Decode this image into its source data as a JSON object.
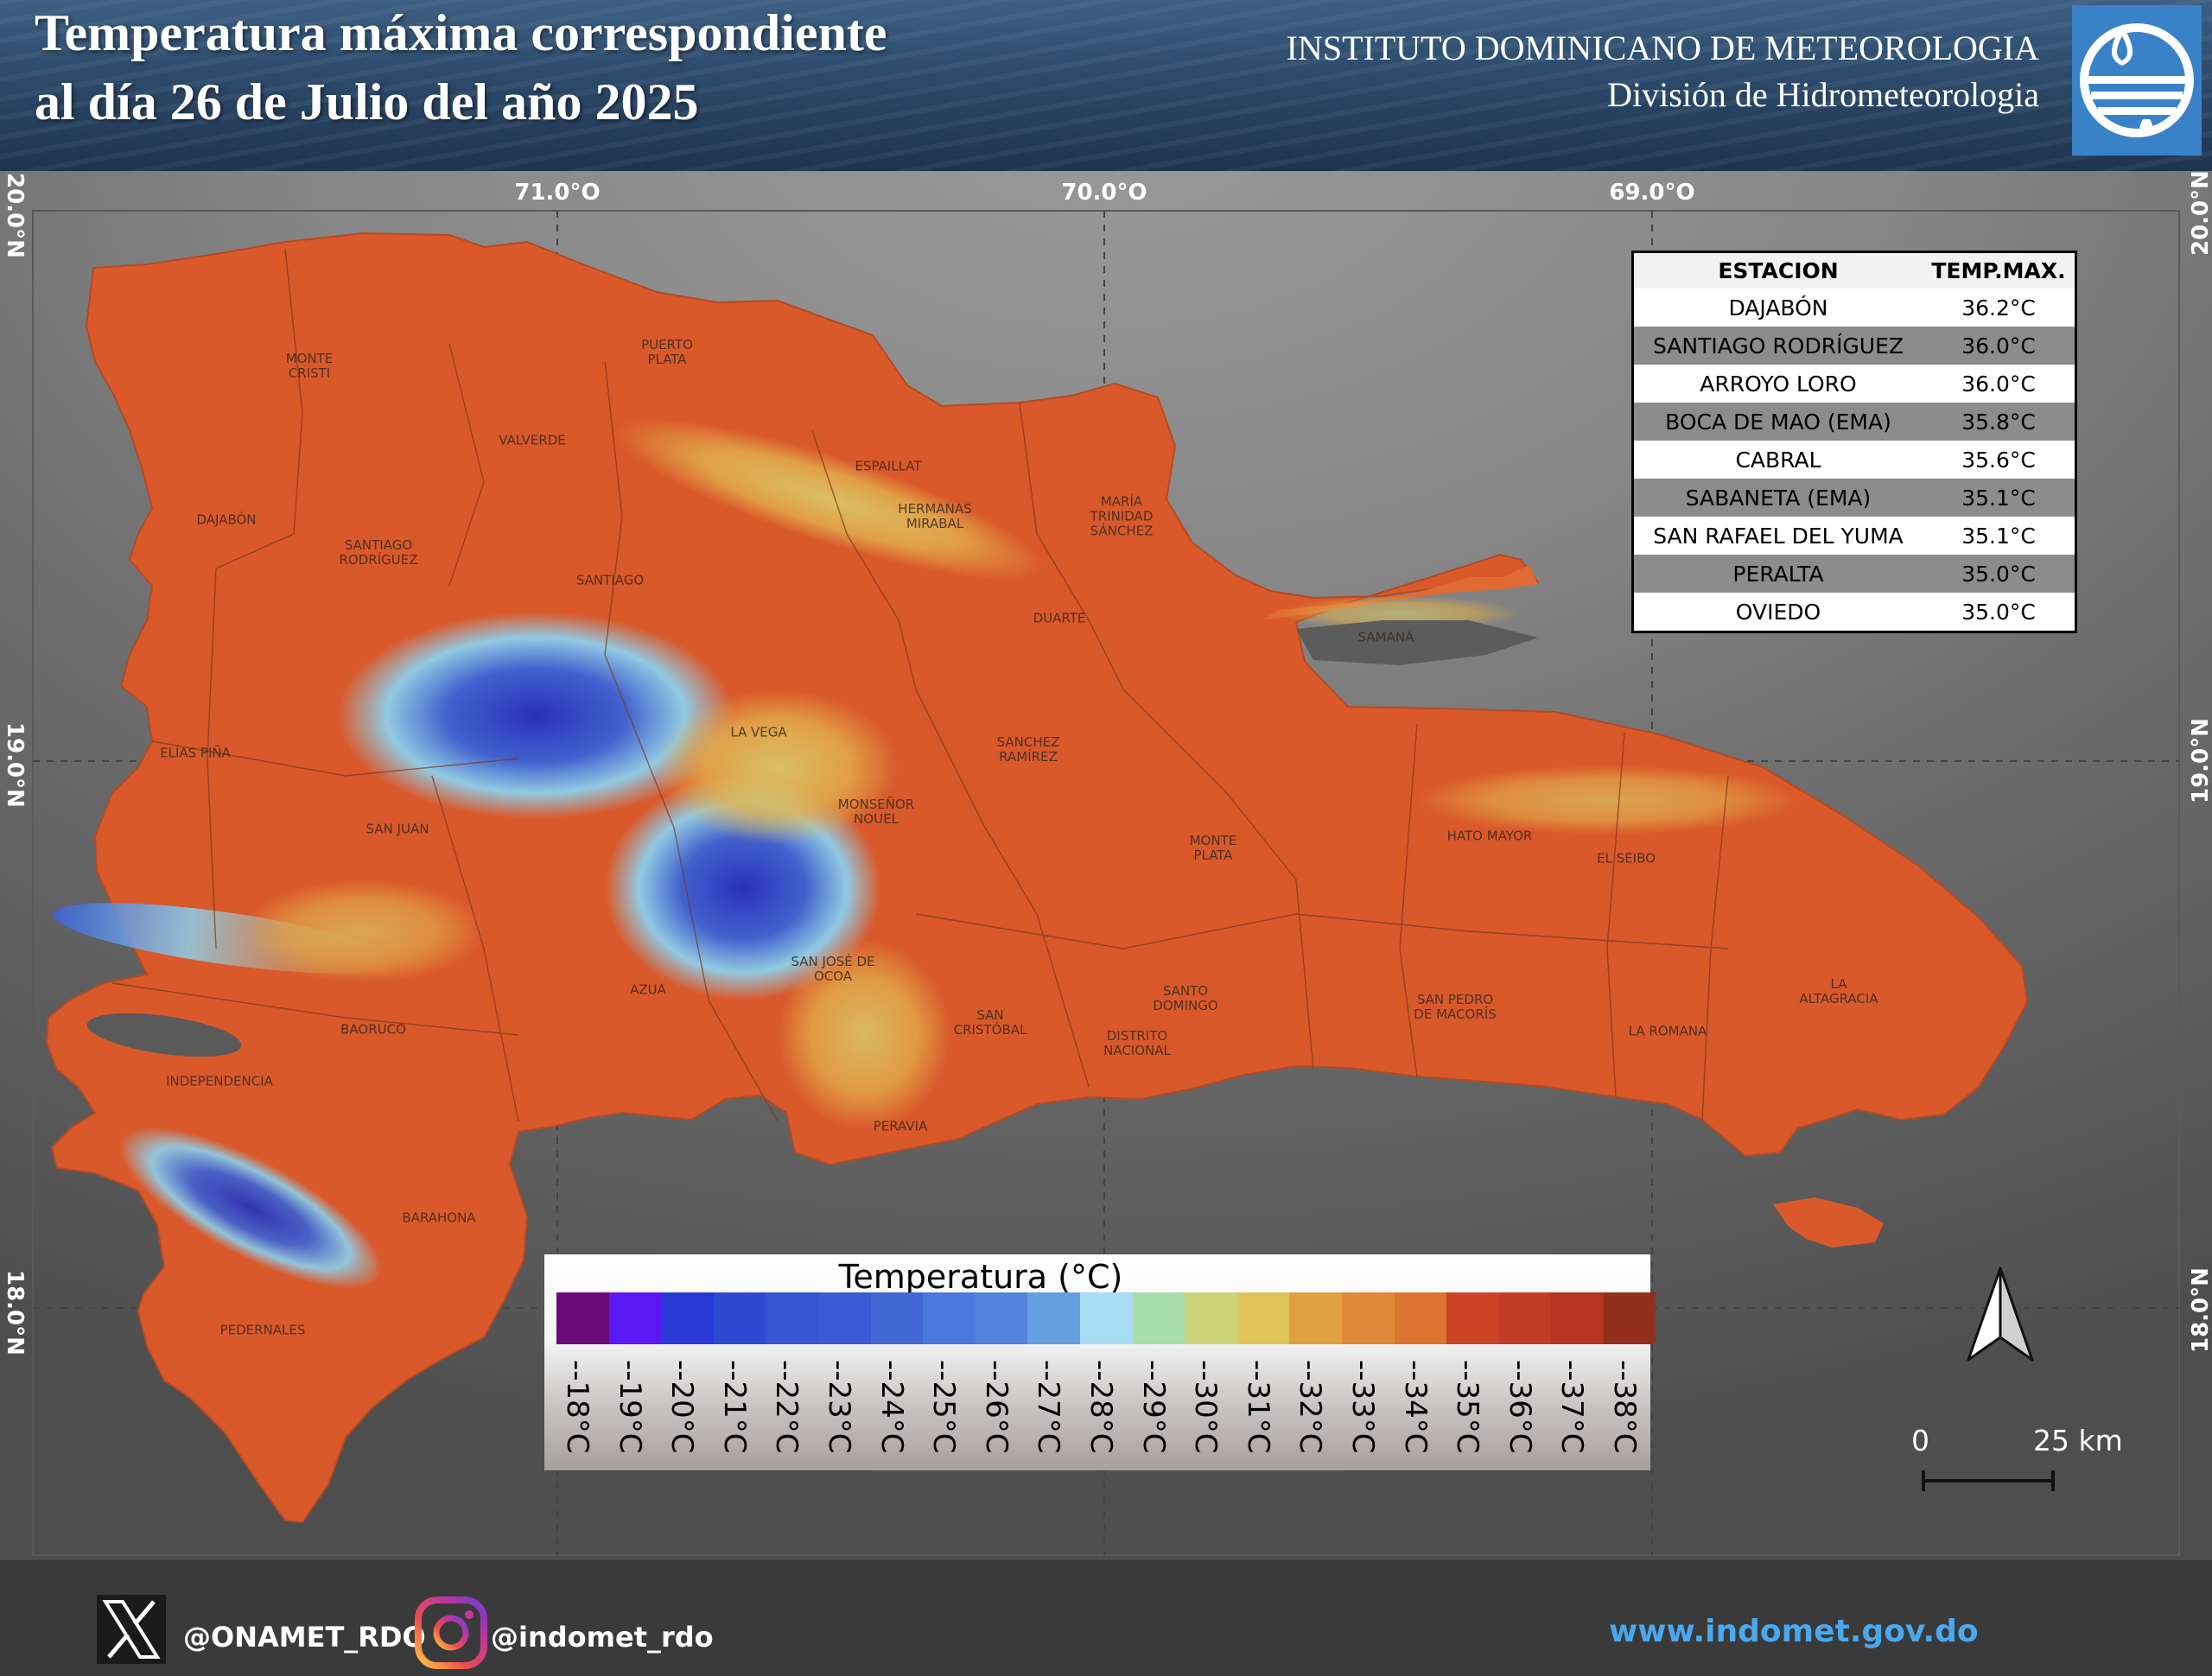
{
  "header": {
    "title_line1": "Temperatura máxima correspondiente",
    "title_line2": "al día 26 de Julio del año 2025",
    "institute": "INSTITUTO DOMINICANO DE METEOROLOGIA",
    "division": "División de Hidrometeorologia",
    "logo_icon": "indomet-logo-icon"
  },
  "map": {
    "lon_labels": [
      "71.0°O",
      "70.0°O",
      "69.0°O"
    ],
    "lat_labels": [
      "20.0°N",
      "19.0°N",
      "18.0°N"
    ],
    "provinces": [
      "MONTE\nCRISTI",
      "PUERTO\nPLATA",
      "VALVERDE",
      "ESPAILLAT",
      "HERMANAS\nMIRABAL",
      "MARÍA\nTRINIDAD\nSÁNCHEZ",
      "DAJABÓN",
      "SANTIAGO\nRODRÍGUEZ",
      "SANTIAGO",
      "DUARTE",
      "SAMANÁ",
      "LA VEGA",
      "SANCHEZ\nRAMÍREZ",
      "ELÍAS PIÑA",
      "SAN JUAN",
      "MONSEÑOR\nNOUEL",
      "MONTE\nPLATA",
      "HATO MAYOR",
      "EL SEIBO",
      "SAN JOSÉ DE\nOCOA",
      "AZUA",
      "BAORUCO",
      "SAN\nCRISTÓBAL",
      "SANTO\nDOMINGO",
      "DISTRITO\nNACIONAL",
      "SAN PEDRO\nDE MACORÍS",
      "LA ROMANA",
      "LA\nALTAGRACIA",
      "INDEPENDENCIA",
      "PERAVIA",
      "BARAHONA",
      "PEDERNALES"
    ]
  },
  "stations": {
    "header_station": "ESTACION",
    "header_temp": "TEMP.MAX.",
    "rows": [
      {
        "name": "DAJABÓN",
        "temp": "36.2°C"
      },
      {
        "name": "SANTIAGO RODRÍGUEZ",
        "temp": "36.0°C"
      },
      {
        "name": "ARROYO LORO",
        "temp": "36.0°C"
      },
      {
        "name": "BOCA DE MAO (EMA)",
        "temp": "35.8°C"
      },
      {
        "name": "CABRAL",
        "temp": "35.6°C"
      },
      {
        "name": "SABANETA (EMA)",
        "temp": "35.1°C"
      },
      {
        "name": "SAN RAFAEL DEL YUMA",
        "temp": "35.1°C"
      },
      {
        "name": "PERALTA",
        "temp": "35.0°C"
      },
      {
        "name": "OVIEDO",
        "temp": "35.0°C"
      }
    ]
  },
  "legend": {
    "title": "Temperatura (°C)",
    "labels": [
      "--18°C",
      "--19°C",
      "--20°C",
      "--21°C",
      "--22°C",
      "--23°C",
      "--24°C",
      "--25°C",
      "--26°C",
      "--27°C",
      "--28°C",
      "--29°C",
      "--30°C",
      "--31°C",
      "--32°C",
      "--33°C",
      "--34°C",
      "--35°C",
      "--36°C",
      "--37°C",
      "--38°C"
    ],
    "colors": [
      "#6a0a7a",
      "#5a18f2",
      "#2a3ad8",
      "#2f48d0",
      "#3556d2",
      "#3a5ad4",
      "#4268d8",
      "#4a78dc",
      "#5284dc",
      "#64a0e0",
      "#a8dcf4",
      "#a8dca8",
      "#ccd27a",
      "#e0c35a",
      "#e3a040",
      "#de8a38",
      "#db7430",
      "#cc4426",
      "#c13c24",
      "#b53422",
      "#92301e"
    ]
  },
  "scale": {
    "zero": "0",
    "distance": "25 km"
  },
  "north_icon": "north-arrow-icon",
  "footer": {
    "x_handle": "@ONAMET_RDO",
    "ig_handle": "@indomet_rdo",
    "website": "www.indomet.gov.do",
    "x_icon": "x-logo-icon",
    "ig_icon": "instagram-icon",
    "website_color": "#4aa8ef"
  }
}
